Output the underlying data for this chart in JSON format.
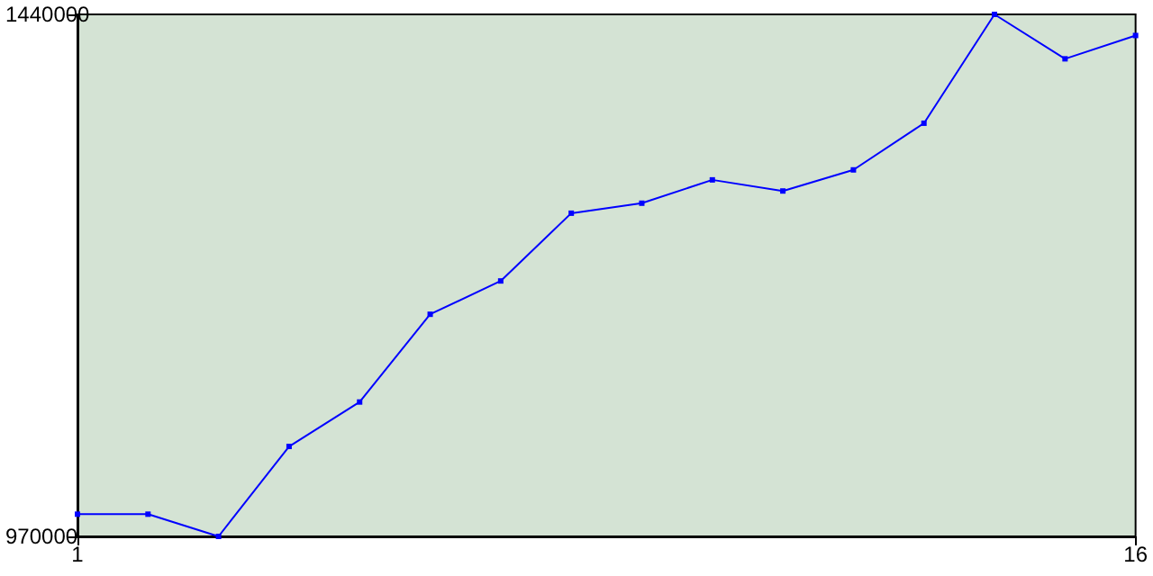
{
  "chart_data": {
    "type": "line",
    "x": [
      1,
      2,
      3,
      4,
      5,
      6,
      7,
      8,
      9,
      10,
      11,
      12,
      13,
      14,
      15,
      16
    ],
    "series": [
      {
        "color": "#0000ff",
        "values": [
          990000,
          990000,
          970000,
          1051000,
          1091000,
          1170000,
          1200000,
          1261000,
          1270000,
          1291000,
          1281000,
          1300000,
          1342000,
          1440000,
          1400000,
          1421000
        ]
      }
    ],
    "xlim": [
      1,
      16
    ],
    "xticks": [
      1,
      16
    ],
    "ylim": [
      970000,
      1440000
    ],
    "yticks": [
      970000,
      1440000
    ],
    "grid": false,
    "marker": "square",
    "line_style": "solid"
  }
}
